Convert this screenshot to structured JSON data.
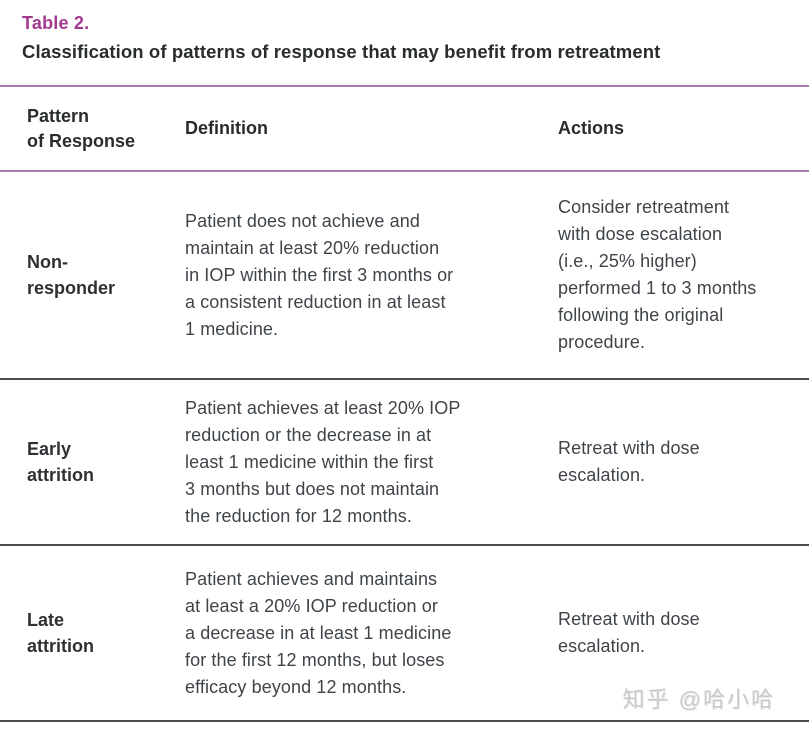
{
  "page": {
    "table_label": "Table 2.",
    "title": "Classification of patterns of response that may benefit from retreatment"
  },
  "table": {
    "columns": [
      "Pattern\nof Response",
      "Definition",
      "Actions"
    ],
    "rows": [
      {
        "pattern": "Non-\nresponder",
        "definition": "Patient does not achieve and\nmaintain at least 20% reduction\nin IOP within the first 3 months or\na consistent reduction in at least\n1 medicine.",
        "actions": "Consider retreatment\nwith dose escalation\n(i.e., 25% higher)\nperformed 1 to 3 months\nfollowing the original\nprocedure."
      },
      {
        "pattern": "Early\nattrition",
        "definition": "Patient achieves at least 20% IOP\nreduction or the decrease in at\nleast 1 medicine within the first\n3 months but does not maintain\nthe reduction for 12 months.",
        "actions": "Retreat with dose\nescalation."
      },
      {
        "pattern": "Late\nattrition",
        "definition": "Patient achieves and maintains\nat least a 20% IOP reduction or\na decrease in at least 1 medicine\nfor the first 12 months, but loses\nefficacy beyond 12 months.",
        "actions": "Retreat with dose\nescalation."
      }
    ]
  },
  "watermark": "知乎 @哈小哈",
  "colors": {
    "accent": "#a43a90",
    "header_rule": "#ab7bab",
    "row_rule": "#4d4d4d",
    "heading_ink": "#292c2e",
    "body_ink": "#3f4449",
    "watermark": "#c9c9c9"
  }
}
